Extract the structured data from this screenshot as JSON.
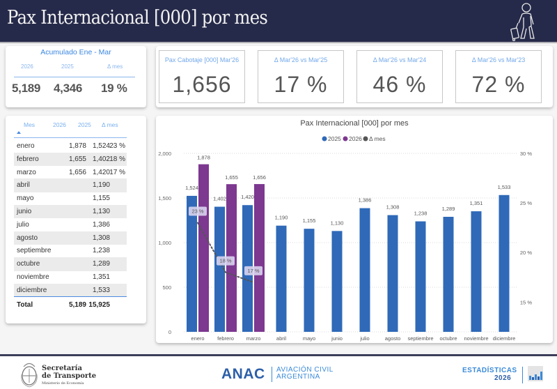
{
  "header": {
    "title": "Pax Internacional [000] por mes",
    "icon": "traveler-with-luggage-icon"
  },
  "accumulated": {
    "title": "Acumulado Ene - Mar",
    "headers": [
      "2026",
      "2025",
      "Δ mes"
    ],
    "values": [
      "5,189",
      "4,346",
      "19 %"
    ]
  },
  "kpis": [
    {
      "label": "Pax Cabotaje [000] Mar'26",
      "value": "1,656"
    },
    {
      "label": "Δ Mar'26 vs Mar'25",
      "value": "17 %"
    },
    {
      "label": "Δ Mar'26 vs Mar'24",
      "value": "46 %"
    },
    {
      "label": "Δ Mar'26 vs Mar'23",
      "value": "72 %"
    }
  ],
  "table": {
    "headers": [
      "Mes",
      "2026",
      "2025",
      "Δ mes"
    ],
    "rows": [
      [
        "enero",
        "1,878",
        "1,524",
        "23 %"
      ],
      [
        "febrero",
        "1,655",
        "1,402",
        "18 %"
      ],
      [
        "marzo",
        "1,656",
        "1,420",
        "17 %"
      ],
      [
        "abril",
        "",
        "1,190",
        ""
      ],
      [
        "mayo",
        "",
        "1,155",
        ""
      ],
      [
        "junio",
        "",
        "1,130",
        ""
      ],
      [
        "julio",
        "",
        "1,386",
        ""
      ],
      [
        "agosto",
        "",
        "1,308",
        ""
      ],
      [
        "septiembre",
        "",
        "1,238",
        ""
      ],
      [
        "octubre",
        "",
        "1,289",
        ""
      ],
      [
        "noviembre",
        "",
        "1,351",
        ""
      ],
      [
        "diciembre",
        "",
        "1,533",
        ""
      ]
    ],
    "total": [
      "Total",
      "5,189",
      "15,925",
      ""
    ]
  },
  "chart_data": {
    "type": "bar",
    "title": "Pax Internacional [000] por mes",
    "legend": [
      "2025",
      "2026",
      "Δ mes"
    ],
    "legend_position": "top-center",
    "categories": [
      "enero",
      "febrero",
      "marzo",
      "abril",
      "mayo",
      "junio",
      "julio",
      "agosto",
      "septiembre",
      "octubre",
      "noviembre",
      "diciembre"
    ],
    "series": [
      {
        "name": "2025",
        "type": "bar",
        "color": "#2f69b8",
        "values": [
          1524,
          1402,
          1420,
          1190,
          1155,
          1130,
          1386,
          1308,
          1238,
          1289,
          1351,
          1533
        ]
      },
      {
        "name": "2026",
        "type": "bar",
        "color": "#7d3890",
        "values": [
          1878,
          1655,
          1656,
          null,
          null,
          null,
          null,
          null,
          null,
          null,
          null,
          null
        ]
      },
      {
        "name": "Δ mes",
        "type": "line",
        "axis": "right",
        "color": "#555555",
        "style": "dotted",
        "values": [
          23,
          18,
          17,
          null,
          null,
          null,
          null,
          null,
          null,
          null,
          null,
          null
        ],
        "labels": [
          "23 %",
          "18 %",
          "17 %"
        ]
      }
    ],
    "y_left": {
      "min": 0,
      "max": 2000,
      "ticks": [
        0,
        500,
        1000,
        1500,
        2000
      ],
      "tick_labels": [
        "0",
        "500",
        "1,000",
        "1,500",
        "2,000"
      ]
    },
    "y_right": {
      "min": 12,
      "max": 30,
      "ticks": [
        15,
        20,
        25,
        30
      ],
      "tick_labels": [
        "15 %",
        "20 %",
        "25 %",
        "30 %"
      ]
    },
    "data_labels_2025": [
      "1,524",
      "1,402",
      "1,420",
      "1,190",
      "1,155",
      "1,130",
      "1,386",
      "1,308",
      "1,238",
      "1,289",
      "1,351",
      "1,533"
    ],
    "data_labels_2026": [
      "1,878",
      "1,655",
      "1,656"
    ],
    "grid": true
  },
  "footer": {
    "secretaria_line1": "Secretaría",
    "secretaria_line2": "de Transporte",
    "ministerio": "Ministerio de Economía",
    "anac": "ANAC",
    "anac_sub1": "AVIACIÓN CIVIL",
    "anac_sub2": "ARGENTINA",
    "estadisticas": "ESTADÍSTICAS",
    "year": "2026"
  }
}
